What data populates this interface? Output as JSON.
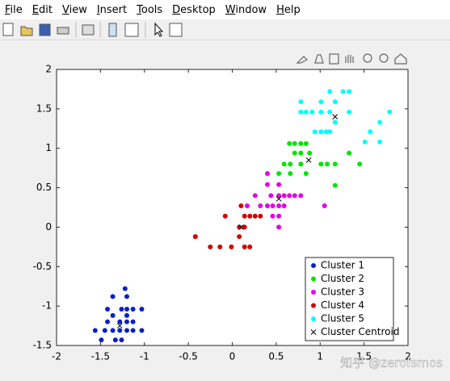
{
  "menu": [
    "File",
    "Edit",
    "View",
    "Insert",
    "Tools",
    "Desktop",
    "Window",
    "Help"
  ],
  "watermark": "知乎 @zerofsmos",
  "chart_data": {
    "type": "scatter",
    "xlim": [
      -2,
      2
    ],
    "ylim": [
      -1.5,
      2
    ],
    "xticks": [
      -2,
      -1.5,
      -1,
      -0.5,
      0,
      0.5,
      1,
      1.5,
      2
    ],
    "yticks": [
      -1.5,
      -1,
      -0.5,
      0,
      0.5,
      1,
      1.5,
      2
    ],
    "grid": false,
    "legend": "lower right",
    "series": [
      {
        "name": "Cluster 1",
        "color": "#0a1fc8",
        "marker": "o",
        "x": [
          -1.22,
          -1.36,
          -1.2,
          -1.42,
          -1.26,
          -1.2,
          -1.13,
          -1.03,
          -1.36,
          -1.2,
          -1.42,
          -1.28,
          -1.2,
          -1.13,
          -1.56,
          -1.45,
          -1.36,
          -1.28,
          -1.2,
          -1.13,
          -1.03,
          -1.49,
          -1.33,
          -1.26
        ],
        "y": [
          -0.78,
          -0.88,
          -0.88,
          -1.04,
          -1.04,
          -1.04,
          -1.04,
          -1.04,
          -1.12,
          -1.12,
          -1.2,
          -1.2,
          -1.2,
          -1.2,
          -1.31,
          -1.31,
          -1.31,
          -1.31,
          -1.31,
          -1.31,
          -1.31,
          -1.43,
          -1.43,
          -1.43
        ]
      },
      {
        "name": "Cluster 2",
        "color": "#00e600",
        "marker": "o",
        "x": [
          0.65,
          0.71,
          0.78,
          0.84,
          0.71,
          0.78,
          0.88,
          1.33,
          0.59,
          0.66,
          0.78,
          1.01,
          1.08,
          1.17,
          1.45,
          0.53,
          0.66,
          0.84,
          1.17
        ],
        "y": [
          1.06,
          1.06,
          1.06,
          1.06,
          0.94,
          0.94,
          0.94,
          0.94,
          0.8,
          0.8,
          0.8,
          0.8,
          0.8,
          0.8,
          0.8,
          0.68,
          0.68,
          0.68,
          0.53
        ]
      },
      {
        "name": "Cluster 3",
        "color": "#e600e6",
        "marker": "o",
        "x": [
          0.4,
          0.4,
          0.53,
          0.26,
          0.44,
          0.53,
          0.59,
          0.65,
          0.71,
          0.78,
          0.17,
          0.32,
          0.4,
          0.46,
          0.53,
          0.59,
          1.05,
          0.46,
          0.53,
          0.53
        ],
        "y": [
          0.68,
          0.54,
          0.54,
          0.4,
          0.4,
          0.4,
          0.4,
          0.4,
          0.4,
          0.4,
          0.27,
          0.27,
          0.27,
          0.27,
          0.27,
          0.27,
          0.27,
          0.14,
          0.14,
          0.0
        ]
      },
      {
        "name": "Cluster 4",
        "color": "#d40000",
        "marker": "o",
        "x": [
          0.1,
          -0.08,
          0.14,
          0.2,
          0.26,
          0.32,
          0.08,
          0.14,
          -0.42,
          0.08,
          -0.25,
          -0.14,
          -0.01,
          0.14,
          0.2
        ],
        "y": [
          0.27,
          0.14,
          0.14,
          0.14,
          0.14,
          0.14,
          0.0,
          0.0,
          -0.12,
          -0.12,
          -0.25,
          -0.25,
          -0.25,
          -0.25,
          -0.25
        ]
      },
      {
        "name": "Cluster 5",
        "color": "#00ffff",
        "marker": "o",
        "x": [
          1.11,
          1.26,
          1.33,
          0.78,
          1.01,
          1.17,
          0.78,
          0.84,
          0.91,
          1.01,
          1.11,
          1.33,
          1.79,
          1.17,
          1.68,
          0.94,
          1.01,
          1.07,
          1.11,
          1.57,
          1.51,
          1.68
        ],
        "y": [
          1.72,
          1.72,
          1.72,
          1.59,
          1.59,
          1.59,
          1.46,
          1.46,
          1.46,
          1.46,
          1.46,
          1.46,
          1.46,
          1.33,
          1.33,
          1.21,
          1.21,
          1.21,
          1.21,
          1.21,
          1.08,
          1.08
        ]
      },
      {
        "name": "Cluster Centroid",
        "color": "#000000",
        "marker": "x",
        "x": [
          -1.28,
          0.87,
          0.53,
          0.1,
          1.17
        ],
        "y": [
          -1.25,
          0.85,
          0.36,
          0.0,
          1.4
        ]
      }
    ]
  }
}
